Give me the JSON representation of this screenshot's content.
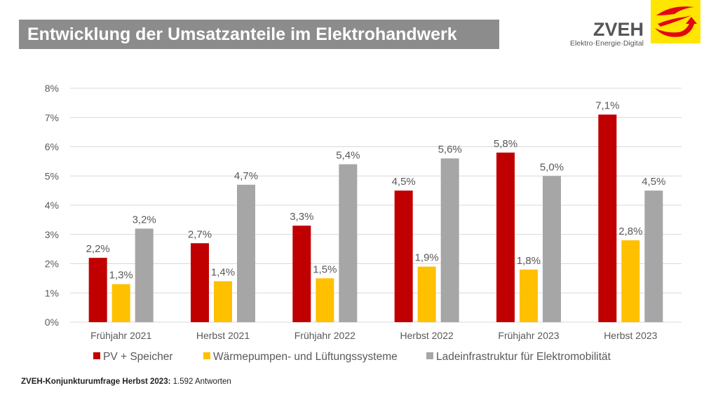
{
  "title": "Entwicklung der Umsatzanteile im Elektrohandwerk",
  "logo": {
    "name": "ZVEH",
    "tagline": "Elektro·Energie·Digital",
    "colors": {
      "background": "#ffe500",
      "mark": "#e30613"
    }
  },
  "footer": {
    "source_bold": "ZVEH-Konjunkturumfrage Herbst 2023:",
    "source_rest": "1.592 Antworten"
  },
  "chart_data": {
    "type": "bar",
    "categories": [
      "Frühjahr 2021",
      "Herbst 2021",
      "Frühjahr 2022",
      "Herbst 2022",
      "Frühjahr 2023",
      "Herbst 2023"
    ],
    "series": [
      {
        "name": "PV + Speicher",
        "color": "#c00000",
        "values": [
          2.2,
          2.7,
          3.3,
          4.5,
          5.8,
          7.1
        ],
        "labels": [
          "2,2%",
          "2,7%",
          "3,3%",
          "4,5%",
          "5,8%",
          "7,1%"
        ]
      },
      {
        "name": "Wärmepumpen- und Lüftungssysteme",
        "color": "#ffc000",
        "values": [
          1.3,
          1.4,
          1.5,
          1.9,
          1.8,
          2.8
        ],
        "labels": [
          "1,3%",
          "1,4%",
          "1,5%",
          "1,9%",
          "1,8%",
          "2,8%"
        ]
      },
      {
        "name": "Ladeinfrastruktur für Elektromobilität",
        "color": "#a6a6a6",
        "values": [
          3.2,
          4.7,
          5.4,
          5.6,
          5.0,
          4.5
        ],
        "labels": [
          "3,2%",
          "4,7%",
          "5,4%",
          "5,6%",
          "5,0%",
          "4,5%"
        ]
      }
    ],
    "yticks": [
      "0%",
      "1%",
      "2%",
      "3%",
      "4%",
      "5%",
      "6%",
      "7%",
      "8%"
    ],
    "ylim": [
      0,
      8
    ],
    "grid": true,
    "legend": "bottom"
  }
}
